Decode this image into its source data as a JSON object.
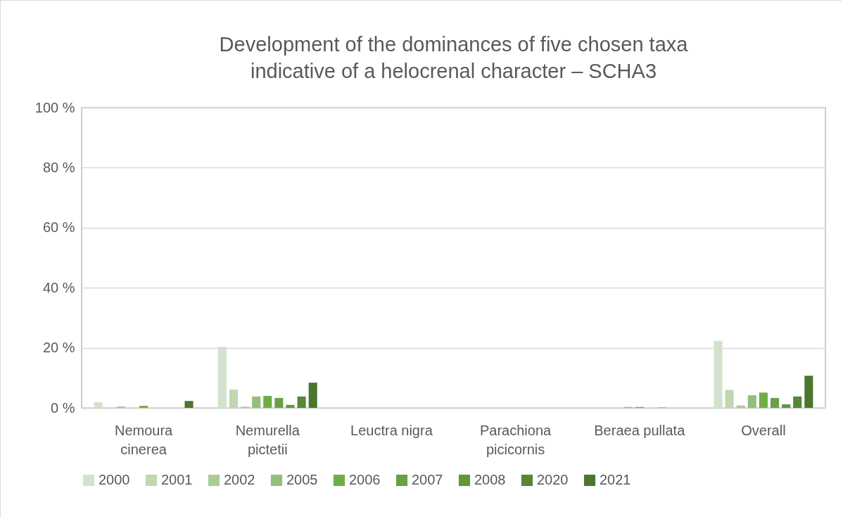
{
  "chart_data": {
    "type": "bar",
    "title": "Development of the dominances of five chosen taxa indicative of a helocrenal character – SCHA3",
    "categories": [
      "Nemoura cinerea",
      "Nemurella pictetii",
      "Leuctra nigra",
      "Parachiona picicornis",
      "Beraea pullata",
      "Overall"
    ],
    "series": [
      {
        "name": "2000",
        "color": "#d3e2cd",
        "values": [
          1.9,
          20.4,
          0,
          0,
          0,
          22.3
        ]
      },
      {
        "name": "2001",
        "color": "#bed8b2",
        "values": [
          0,
          6.1,
          0,
          0,
          0,
          6.0
        ]
      },
      {
        "name": "2002",
        "color": "#a9cc98",
        "values": [
          0.5,
          0.4,
          0,
          0,
          0,
          0.8
        ]
      },
      {
        "name": "2005",
        "color": "#93bf7c",
        "values": [
          0,
          3.8,
          0,
          0,
          0.3,
          4.2
        ]
      },
      {
        "name": "2006",
        "color": "#70ad47",
        "values": [
          0.7,
          4.0,
          0,
          0,
          0.3,
          5.1
        ]
      },
      {
        "name": "2007",
        "color": "#68a043",
        "values": [
          0,
          3.3,
          0,
          0,
          0,
          3.3
        ]
      },
      {
        "name": "2008",
        "color": "#5f973b",
        "values": [
          0,
          1.0,
          0,
          0,
          0.1,
          1.2
        ]
      },
      {
        "name": "2020",
        "color": "#558736",
        "values": [
          0,
          3.8,
          0,
          0,
          0,
          3.8
        ]
      },
      {
        "name": "2021",
        "color": "#4a762f",
        "values": [
          2.3,
          8.4,
          0,
          0,
          0,
          10.7
        ]
      }
    ],
    "ylim": [
      0,
      100
    ],
    "yticks": [
      {
        "value": 0,
        "label": "0 %"
      },
      {
        "value": 20,
        "label": "20 %"
      },
      {
        "value": 40,
        "label": "40 %"
      },
      {
        "value": 60,
        "label": "60 %"
      },
      {
        "value": 80,
        "label": "80 %"
      },
      {
        "value": 100,
        "label": "100 %"
      }
    ],
    "grid": "y",
    "legend": "bottom"
  }
}
